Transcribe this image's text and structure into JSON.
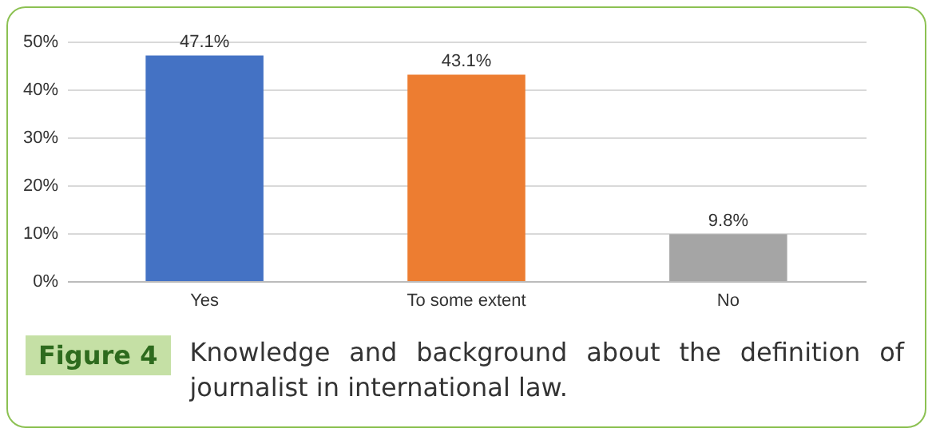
{
  "chart_data": {
    "type": "bar",
    "categories": [
      "Yes",
      "To some extent",
      "No"
    ],
    "values": [
      47.1,
      43.1,
      9.8
    ],
    "colors": [
      "#4472c4",
      "#ed7d31",
      "#a5a5a5"
    ],
    "value_labels": [
      "47.1%",
      "43.1%",
      "9.8%"
    ],
    "ylim": [
      0,
      50
    ],
    "yticks": [
      {
        "value": 0,
        "label": "0%"
      },
      {
        "value": 10,
        "label": "10%"
      },
      {
        "value": 20,
        "label": "20%"
      },
      {
        "value": 30,
        "label": "30%"
      },
      {
        "value": 40,
        "label": "40%"
      },
      {
        "value": 50,
        "label": "50%"
      }
    ],
    "grid": "y",
    "annotations": [
      "Figure 4",
      "Knowledge and background about the definition of journalist in international law."
    ]
  }
}
